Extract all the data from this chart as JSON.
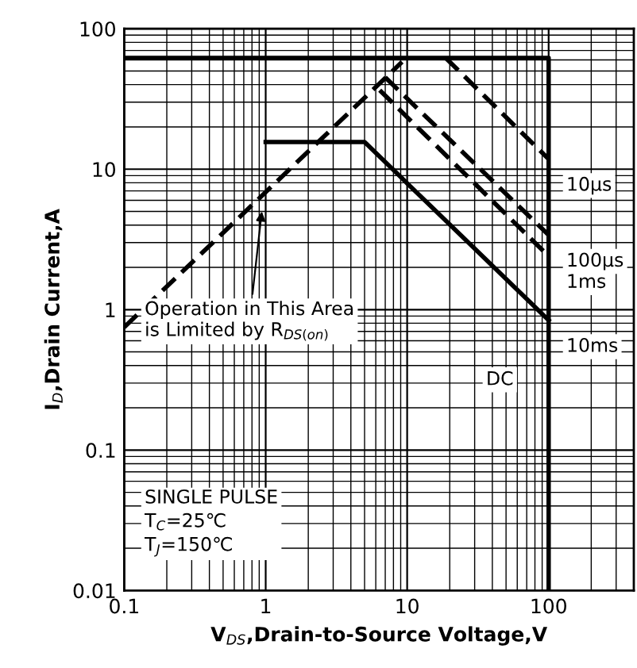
{
  "chart_data": {
    "type": "line",
    "log": "xy",
    "xlabel": "V$_{DS}$,Drain-to-Source Voltage,V",
    "ylabel": "I$_{D}$,Drain Current,A",
    "xlim": [
      0.1,
      400
    ],
    "ylim": [
      0.01,
      100
    ],
    "xticks": [
      0.1,
      1,
      10,
      100
    ],
    "yticks": [
      0.01,
      0.1,
      1,
      10,
      100
    ],
    "grid": true,
    "marker": "none",
    "series": [
      {
        "x": [
          0.1,
          9.2
        ],
        "values": [
          0.75,
          58
        ],
        "color": "#000000",
        "line_style": "dashed"
      },
      {
        "x": [
          0.1,
          100,
          100
        ],
        "values": [
          62,
          62,
          0.01
        ],
        "color": "#000000",
        "line_style": "solid"
      },
      {
        "name": "10µs",
        "x": [
          18.7,
          100
        ],
        "values": [
          62,
          11.8
        ],
        "color": "#000000",
        "line_style": "dashed"
      },
      {
        "name": "100µs",
        "x": [
          7,
          100
        ],
        "values": [
          45,
          3.4
        ],
        "color": "#000000",
        "line_style": "dashed"
      },
      {
        "name": "1ms",
        "x": [
          6.4,
          100
        ],
        "values": [
          36.5,
          2.4
        ],
        "color": "#000000",
        "line_style": "dashed"
      },
      {
        "name": "10ms",
        "x": [
          1,
          5,
          100
        ],
        "values": [
          15.6,
          15.6,
          0.84
        ],
        "color": "#000000",
        "line_style": "solid"
      }
    ],
    "annotations": [
      "DC",
      "Operation in This Area\nis Limited by R$_{DS(on)}$",
      "SINGLE PULSE\nT$_{C}$=25℃\nT$_{J}$=150℃"
    ]
  }
}
